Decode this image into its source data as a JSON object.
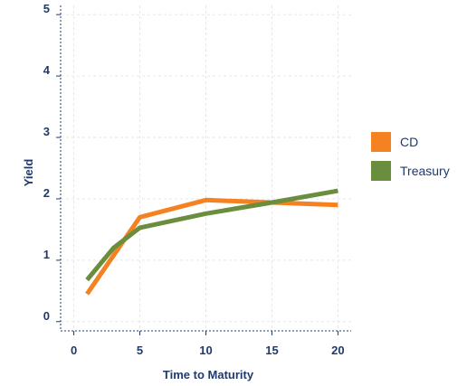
{
  "chart_data": {
    "type": "line",
    "title": "",
    "xlabel": "Time to Maturity",
    "ylabel": "Yield",
    "xlim": [
      -1,
      21
    ],
    "ylim": [
      -0.15,
      5.15
    ],
    "xticks": [
      0,
      5,
      10,
      15,
      20
    ],
    "yticks": [
      0,
      1,
      2,
      3,
      4,
      5
    ],
    "grid": true,
    "legend_position": "right",
    "series": [
      {
        "name": "CD",
        "color": "#f58220",
        "points": [
          [
            1,
            0.45
          ],
          [
            5,
            1.7
          ],
          [
            10,
            1.98
          ],
          [
            15,
            1.94
          ],
          [
            20,
            1.9
          ]
        ]
      },
      {
        "name": "Treasury",
        "color": "#6b8e3e",
        "points": [
          [
            1,
            0.68
          ],
          [
            3,
            1.2
          ],
          [
            5,
            1.53
          ],
          [
            10,
            1.76
          ],
          [
            15,
            1.94
          ],
          [
            20,
            2.13
          ]
        ]
      }
    ]
  }
}
